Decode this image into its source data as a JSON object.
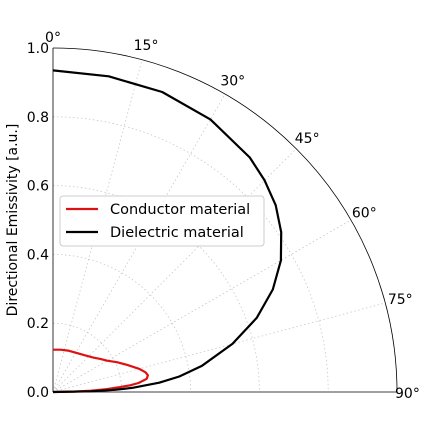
{
  "chart_data": {
    "type": "polar-line",
    "theta_unit": "degrees",
    "theta_range": [
      0,
      90
    ],
    "theta_ticks": [
      "0°",
      "15°",
      "30°",
      "45°",
      "60°",
      "75°",
      "90°"
    ],
    "r_range": [
      0.0,
      1.0
    ],
    "r_ticks": [
      "0.0",
      "0.2",
      "0.4",
      "0.6",
      "0.8",
      "1.0"
    ],
    "ylabel": "Directional Emissivity [a.u.]",
    "grid": true,
    "legend_position": "center-left",
    "series": [
      {
        "name": "Conductor material",
        "color": "#dd1111",
        "theta_deg": [
          0,
          10,
          20,
          30,
          40,
          50,
          55,
          60,
          65,
          70,
          75,
          78,
          80,
          82,
          84,
          85,
          86,
          87,
          88,
          89,
          90
        ],
        "r": [
          0.123,
          0.125,
          0.128,
          0.132,
          0.14,
          0.155,
          0.168,
          0.182,
          0.205,
          0.23,
          0.26,
          0.275,
          0.28,
          0.275,
          0.25,
          0.225,
          0.19,
          0.155,
          0.11,
          0.06,
          0.0
        ]
      },
      {
        "name": "Dielectric material",
        "color": "#000000",
        "theta_deg": [
          0,
          10,
          20,
          30,
          40,
          45,
          50,
          55,
          60,
          65,
          70,
          75,
          80,
          83,
          85,
          87,
          88,
          89,
          90
        ],
        "r": [
          0.935,
          0.932,
          0.928,
          0.915,
          0.89,
          0.87,
          0.845,
          0.81,
          0.765,
          0.705,
          0.63,
          0.54,
          0.44,
          0.37,
          0.31,
          0.23,
          0.18,
          0.11,
          0.0
        ]
      }
    ]
  }
}
